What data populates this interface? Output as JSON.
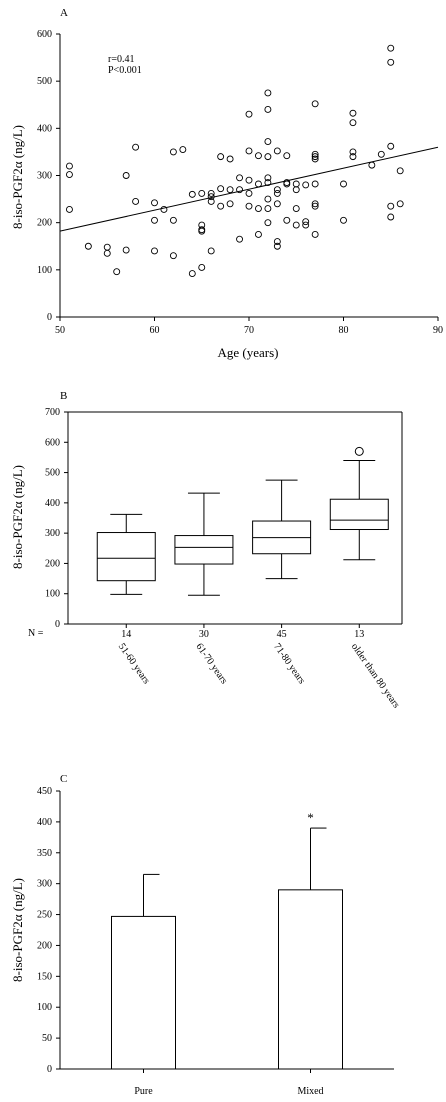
{
  "chart_data": [
    {
      "panel": "A",
      "type": "scatter",
      "xlabel": "Age (years)",
      "ylabel": "8-iso-PGF2α (ng/L)",
      "xlim": [
        50,
        90
      ],
      "ylim": [
        0,
        600
      ],
      "xticks": [
        50,
        60,
        70,
        80,
        90
      ],
      "yticks": [
        0,
        100,
        200,
        300,
        400,
        500,
        600
      ],
      "annotation": [
        "r=0.41",
        "P<0.001"
      ],
      "regression_line": {
        "x": [
          50,
          90
        ],
        "y": [
          182,
          360
        ]
      },
      "points": [
        [
          51,
          320
        ],
        [
          51,
          302
        ],
        [
          51,
          228
        ],
        [
          53,
          150
        ],
        [
          55,
          148
        ],
        [
          55,
          135
        ],
        [
          56,
          96
        ],
        [
          57,
          142
        ],
        [
          57,
          300
        ],
        [
          58,
          245
        ],
        [
          58,
          360
        ],
        [
          60,
          242
        ],
        [
          60,
          205
        ],
        [
          60,
          140
        ],
        [
          61,
          228
        ],
        [
          62,
          350
        ],
        [
          62,
          205
        ],
        [
          62,
          130
        ],
        [
          63,
          355
        ],
        [
          64,
          260
        ],
        [
          64,
          92
        ],
        [
          65,
          262
        ],
        [
          65,
          195
        ],
        [
          65,
          185
        ],
        [
          65,
          182
        ],
        [
          65,
          105
        ],
        [
          66,
          262
        ],
        [
          66,
          255
        ],
        [
          66,
          245
        ],
        [
          66,
          140
        ],
        [
          67,
          340
        ],
        [
          67,
          272
        ],
        [
          67,
          235
        ],
        [
          68,
          335
        ],
        [
          68,
          270
        ],
        [
          68,
          240
        ],
        [
          69,
          295
        ],
        [
          69,
          270
        ],
        [
          69,
          165
        ],
        [
          70,
          430
        ],
        [
          70,
          352
        ],
        [
          70,
          290
        ],
        [
          70,
          262
        ],
        [
          70,
          235
        ],
        [
          71,
          342
        ],
        [
          71,
          282
        ],
        [
          71,
          230
        ],
        [
          71,
          175
        ],
        [
          72,
          475
        ],
        [
          72,
          440
        ],
        [
          72,
          372
        ],
        [
          72,
          340
        ],
        [
          72,
          295
        ],
        [
          72,
          285
        ],
        [
          72,
          250
        ],
        [
          72,
          230
        ],
        [
          72,
          200
        ],
        [
          73,
          352
        ],
        [
          73,
          270
        ],
        [
          73,
          262
        ],
        [
          73,
          240
        ],
        [
          73,
          160
        ],
        [
          73,
          150
        ],
        [
          74,
          342
        ],
        [
          74,
          285
        ],
        [
          74,
          282
        ],
        [
          74,
          205
        ],
        [
          75,
          282
        ],
        [
          75,
          270
        ],
        [
          75,
          230
        ],
        [
          75,
          195
        ],
        [
          76,
          280
        ],
        [
          76,
          202
        ],
        [
          76,
          195
        ],
        [
          77,
          452
        ],
        [
          77,
          345
        ],
        [
          77,
          340
        ],
        [
          77,
          335
        ],
        [
          77,
          282
        ],
        [
          77,
          240
        ],
        [
          77,
          235
        ],
        [
          77,
          175
        ],
        [
          80,
          282
        ],
        [
          80,
          205
        ],
        [
          81,
          432
        ],
        [
          81,
          412
        ],
        [
          81,
          350
        ],
        [
          81,
          340
        ],
        [
          83,
          322
        ],
        [
          84,
          345
        ],
        [
          85,
          570
        ],
        [
          85,
          540
        ],
        [
          85,
          362
        ],
        [
          85,
          235
        ],
        [
          85,
          212
        ],
        [
          86,
          310
        ],
        [
          86,
          240
        ]
      ]
    },
    {
      "panel": "B",
      "type": "box",
      "ylabel": "8-iso-PGF2α (ng/L)",
      "ylim": [
        0,
        700
      ],
      "yticks": [
        0,
        100,
        200,
        300,
        400,
        500,
        600,
        700
      ],
      "n_label": "N =",
      "categories": [
        "51-60 years",
        "61-70 years",
        "71-80 years",
        "older than 80 years"
      ],
      "n": [
        14,
        30,
        45,
        13
      ],
      "boxes": [
        {
          "min": 98,
          "q1": 143,
          "median": 217,
          "q3": 302,
          "max": 362,
          "outliers": []
        },
        {
          "min": 95,
          "q1": 198,
          "median": 253,
          "q3": 292,
          "max": 432,
          "outliers": []
        },
        {
          "min": 150,
          "q1": 232,
          "median": 285,
          "q3": 340,
          "max": 475,
          "outliers": []
        },
        {
          "min": 212,
          "q1": 312,
          "median": 343,
          "q3": 412,
          "max": 540,
          "outliers": [
            570
          ]
        }
      ]
    },
    {
      "panel": "C",
      "type": "bar",
      "ylabel": "8-iso-PGF2α (ng/L)",
      "ylim": [
        0,
        450
      ],
      "yticks": [
        0,
        50,
        100,
        150,
        200,
        250,
        300,
        350,
        400,
        450
      ],
      "categories": [
        "Pure",
        "Mixed"
      ],
      "values": [
        247,
        290
      ],
      "errors": [
        68,
        100
      ],
      "significance": [
        "",
        "*"
      ]
    }
  ]
}
